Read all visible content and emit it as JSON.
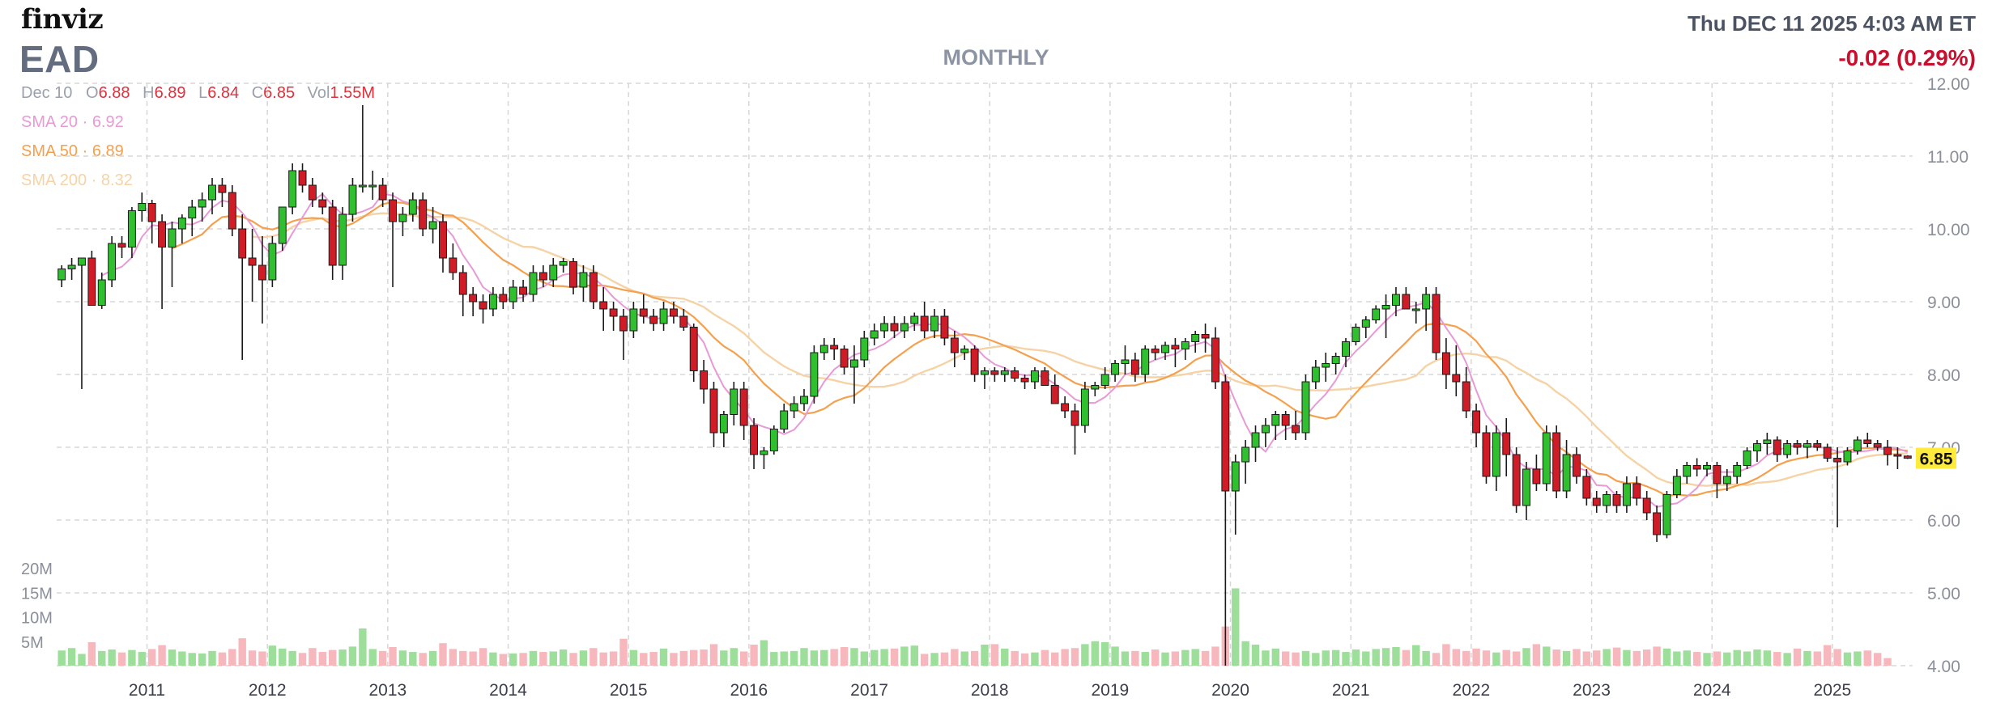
{
  "header": {
    "logo": "finviz",
    "ticker": "EAD",
    "period": "MONTHLY",
    "datetime": "Thu DEC 11 2025 4:03 AM ET",
    "change": "-0.02 (0.29%)"
  },
  "ohlc": {
    "date": "Dec 10",
    "o_label": "O",
    "o": "6.88",
    "h_label": "H",
    "h": "6.89",
    "l_label": "L",
    "l": "6.84",
    "c_label": "C",
    "c": "6.85",
    "vol_label": "Vol",
    "vol": "1.55M"
  },
  "indicators": {
    "sma20": "SMA 20 · 6.92",
    "sma50": "SMA 50 · 6.89",
    "sma200": "SMA 200 · 8.32"
  },
  "colors": {
    "up": "#2fbf2f",
    "down": "#d01c26",
    "vol_up": "#9ddf9a",
    "vol_down": "#f7b8bd",
    "sma20": "#e79ad5",
    "sma50": "#f4a04e",
    "sma200": "#f5d3a6",
    "grid": "#d7d7d7",
    "last_price_bg": "#ffeb3b"
  },
  "chart_data": {
    "type": "candlestick",
    "interval": "monthly",
    "x_tick_labels": [
      "2011",
      "2012",
      "2013",
      "2014",
      "2015",
      "2016",
      "2017",
      "2018",
      "2019",
      "2020",
      "2021",
      "2022",
      "2023",
      "2024",
      "2025"
    ],
    "y_tick_labels": [
      "12.00",
      "11.00",
      "10.00",
      "9.00",
      "8.00",
      "7.00",
      "6.00",
      "5.00",
      "4.00"
    ],
    "ylim": [
      4.0,
      12.0
    ],
    "volume_tick_labels": [
      "20M",
      "15M",
      "10M",
      "5M"
    ],
    "volume_max_m": 20,
    "last_price": "6.85",
    "start": "2010-04",
    "candles": [
      [
        9.3,
        9.5,
        9.2,
        9.45
      ],
      [
        9.45,
        9.6,
        9.3,
        9.5
      ],
      [
        9.5,
        9.6,
        7.8,
        9.6
      ],
      [
        9.6,
        9.7,
        9.0,
        8.95
      ],
      [
        8.95,
        9.4,
        8.9,
        9.3
      ],
      [
        9.3,
        9.9,
        9.2,
        9.8
      ],
      [
        9.8,
        9.9,
        9.6,
        9.75
      ],
      [
        9.75,
        10.3,
        9.6,
        10.25
      ],
      [
        10.25,
        10.5,
        10.1,
        10.35
      ],
      [
        10.35,
        10.4,
        9.8,
        10.1
      ],
      [
        10.1,
        10.2,
        8.9,
        9.75
      ],
      [
        9.75,
        10.1,
        9.2,
        10.0
      ],
      [
        10.0,
        10.2,
        9.8,
        10.15
      ],
      [
        10.15,
        10.4,
        9.9,
        10.3
      ],
      [
        10.3,
        10.5,
        10.1,
        10.4
      ],
      [
        10.4,
        10.7,
        10.2,
        10.6
      ],
      [
        10.6,
        10.7,
        10.3,
        10.5
      ],
      [
        10.5,
        10.6,
        9.9,
        10.0
      ],
      [
        10.0,
        10.2,
        8.2,
        9.6
      ],
      [
        9.6,
        10.0,
        9.0,
        9.5
      ],
      [
        9.5,
        9.9,
        8.7,
        9.3
      ],
      [
        9.3,
        9.9,
        9.2,
        9.8
      ],
      [
        9.8,
        10.3,
        9.7,
        10.3
      ],
      [
        10.3,
        10.9,
        10.2,
        10.8
      ],
      [
        10.8,
        10.9,
        10.5,
        10.6
      ],
      [
        10.6,
        10.7,
        10.3,
        10.4
      ],
      [
        10.4,
        10.5,
        10.2,
        10.3
      ],
      [
        10.3,
        10.4,
        9.3,
        9.5
      ],
      [
        9.5,
        10.3,
        9.3,
        10.2
      ],
      [
        10.2,
        10.7,
        10.1,
        10.6
      ],
      [
        10.6,
        11.7,
        10.5,
        10.6
      ],
      [
        10.6,
        10.8,
        10.4,
        10.6
      ],
      [
        10.6,
        10.7,
        10.3,
        10.4
      ],
      [
        10.4,
        10.5,
        9.2,
        10.1
      ],
      [
        10.1,
        10.3,
        9.9,
        10.2
      ],
      [
        10.2,
        10.5,
        10.1,
        10.4
      ],
      [
        10.4,
        10.5,
        9.9,
        10.0
      ],
      [
        10.0,
        10.3,
        9.8,
        10.1
      ],
      [
        10.1,
        10.2,
        9.4,
        9.6
      ],
      [
        9.6,
        9.8,
        9.3,
        9.4
      ],
      [
        9.4,
        9.5,
        8.8,
        9.1
      ],
      [
        9.1,
        9.2,
        8.8,
        9.0
      ],
      [
        9.0,
        9.1,
        8.7,
        8.9
      ],
      [
        8.9,
        9.2,
        8.8,
        9.1
      ],
      [
        9.1,
        9.2,
        8.9,
        9.0
      ],
      [
        9.0,
        9.3,
        8.9,
        9.2
      ],
      [
        9.2,
        9.3,
        9.0,
        9.1
      ],
      [
        9.1,
        9.5,
        9.0,
        9.4
      ],
      [
        9.4,
        9.5,
        9.2,
        9.3
      ],
      [
        9.3,
        9.6,
        9.2,
        9.5
      ],
      [
        9.5,
        9.6,
        9.4,
        9.55
      ],
      [
        9.55,
        9.6,
        9.1,
        9.2
      ],
      [
        9.2,
        9.5,
        9.0,
        9.4
      ],
      [
        9.4,
        9.5,
        8.9,
        9.0
      ],
      [
        9.0,
        9.2,
        8.6,
        8.9
      ],
      [
        8.9,
        9.0,
        8.6,
        8.8
      ],
      [
        8.8,
        8.9,
        8.2,
        8.6
      ],
      [
        8.6,
        9.0,
        8.5,
        8.9
      ],
      [
        8.9,
        9.1,
        8.7,
        8.8
      ],
      [
        8.8,
        8.9,
        8.6,
        8.7
      ],
      [
        8.7,
        9.0,
        8.6,
        8.9
      ],
      [
        8.9,
        9.0,
        8.7,
        8.8
      ],
      [
        8.8,
        8.9,
        8.6,
        8.65
      ],
      [
        8.65,
        8.7,
        7.9,
        8.05
      ],
      [
        8.05,
        8.2,
        7.6,
        7.8
      ],
      [
        7.8,
        7.9,
        7.0,
        7.2
      ],
      [
        7.2,
        7.5,
        7.0,
        7.45
      ],
      [
        7.45,
        7.9,
        7.3,
        7.8
      ],
      [
        7.8,
        7.9,
        7.1,
        7.3
      ],
      [
        7.3,
        7.4,
        6.7,
        6.9
      ],
      [
        6.9,
        7.0,
        6.7,
        6.95
      ],
      [
        6.95,
        7.3,
        6.9,
        7.25
      ],
      [
        7.25,
        7.6,
        7.2,
        7.5
      ],
      [
        7.5,
        7.7,
        7.4,
        7.6
      ],
      [
        7.6,
        7.8,
        7.5,
        7.7
      ],
      [
        7.7,
        8.4,
        7.6,
        8.3
      ],
      [
        8.3,
        8.5,
        8.2,
        8.4
      ],
      [
        8.4,
        8.5,
        8.2,
        8.35
      ],
      [
        8.35,
        8.4,
        8.0,
        8.1
      ],
      [
        8.1,
        8.4,
        7.6,
        8.2
      ],
      [
        8.2,
        8.6,
        8.1,
        8.5
      ],
      [
        8.5,
        8.7,
        8.4,
        8.6
      ],
      [
        8.6,
        8.8,
        8.5,
        8.7
      ],
      [
        8.7,
        8.8,
        8.5,
        8.6
      ],
      [
        8.6,
        8.8,
        8.5,
        8.7
      ],
      [
        8.7,
        8.85,
        8.6,
        8.8
      ],
      [
        8.8,
        9.0,
        8.5,
        8.6
      ],
      [
        8.6,
        8.9,
        8.5,
        8.8
      ],
      [
        8.8,
        8.9,
        8.4,
        8.5
      ],
      [
        8.5,
        8.6,
        8.1,
        8.3
      ],
      [
        8.3,
        8.4,
        8.2,
        8.35
      ],
      [
        8.35,
        8.4,
        7.9,
        8.0
      ],
      [
        8.0,
        8.1,
        7.8,
        8.05
      ],
      [
        8.05,
        8.1,
        7.9,
        8.0
      ],
      [
        8.0,
        8.1,
        7.9,
        8.05
      ],
      [
        8.05,
        8.1,
        7.9,
        7.95
      ],
      [
        7.95,
        8.0,
        7.8,
        7.9
      ],
      [
        7.9,
        8.1,
        7.8,
        8.05
      ],
      [
        8.05,
        8.1,
        7.9,
        7.85
      ],
      [
        7.85,
        8.0,
        7.6,
        7.6
      ],
      [
        7.6,
        7.7,
        7.4,
        7.5
      ],
      [
        7.5,
        7.6,
        6.9,
        7.3
      ],
      [
        7.3,
        7.9,
        7.2,
        7.8
      ],
      [
        7.8,
        7.9,
        7.7,
        7.85
      ],
      [
        7.85,
        8.1,
        7.8,
        8.0
      ],
      [
        8.0,
        8.2,
        7.9,
        8.15
      ],
      [
        8.15,
        8.4,
        8.0,
        8.2
      ],
      [
        8.2,
        8.3,
        7.9,
        8.0
      ],
      [
        8.0,
        8.4,
        7.9,
        8.35
      ],
      [
        8.35,
        8.4,
        8.2,
        8.3
      ],
      [
        8.3,
        8.45,
        8.2,
        8.4
      ],
      [
        8.4,
        8.5,
        8.1,
        8.35
      ],
      [
        8.35,
        8.5,
        8.2,
        8.45
      ],
      [
        8.45,
        8.6,
        8.3,
        8.55
      ],
      [
        8.55,
        8.7,
        8.3,
        8.5
      ],
      [
        8.5,
        8.65,
        7.8,
        7.9
      ],
      [
        7.9,
        8.0,
        4.0,
        6.4
      ],
      [
        6.4,
        6.9,
        5.8,
        6.8
      ],
      [
        6.8,
        7.1,
        6.5,
        7.0
      ],
      [
        7.0,
        7.3,
        6.8,
        7.2
      ],
      [
        7.2,
        7.4,
        7.0,
        7.3
      ],
      [
        7.3,
        7.5,
        7.1,
        7.45
      ],
      [
        7.45,
        7.5,
        7.1,
        7.3
      ],
      [
        7.3,
        7.5,
        7.1,
        7.2
      ],
      [
        7.2,
        8.0,
        7.1,
        7.9
      ],
      [
        7.9,
        8.2,
        7.8,
        8.1
      ],
      [
        8.1,
        8.3,
        7.9,
        8.15
      ],
      [
        8.15,
        8.3,
        8.0,
        8.25
      ],
      [
        8.25,
        8.5,
        8.1,
        8.45
      ],
      [
        8.45,
        8.7,
        8.4,
        8.65
      ],
      [
        8.65,
        8.8,
        8.5,
        8.75
      ],
      [
        8.75,
        8.95,
        8.7,
        8.9
      ],
      [
        8.9,
        9.1,
        8.5,
        8.95
      ],
      [
        8.95,
        9.2,
        8.8,
        9.1
      ],
      [
        9.1,
        9.2,
        8.9,
        8.9
      ],
      [
        8.9,
        9.0,
        8.7,
        8.9
      ],
      [
        8.9,
        9.2,
        8.6,
        9.1
      ],
      [
        9.1,
        9.2,
        8.2,
        8.3
      ],
      [
        8.3,
        8.5,
        7.8,
        8.0
      ],
      [
        8.0,
        8.4,
        7.7,
        7.9
      ],
      [
        7.9,
        8.1,
        7.4,
        7.5
      ],
      [
        7.5,
        7.6,
        7.0,
        7.2
      ],
      [
        7.2,
        7.3,
        6.5,
        6.6
      ],
      [
        6.6,
        7.3,
        6.4,
        7.2
      ],
      [
        7.2,
        7.4,
        6.6,
        6.9
      ],
      [
        6.9,
        7.0,
        6.1,
        6.2
      ],
      [
        6.2,
        6.8,
        6.0,
        6.7
      ],
      [
        6.7,
        6.9,
        6.4,
        6.5
      ],
      [
        6.5,
        7.3,
        6.4,
        7.2
      ],
      [
        7.2,
        7.3,
        6.3,
        6.4
      ],
      [
        6.4,
        7.1,
        6.3,
        6.9
      ],
      [
        6.9,
        7.0,
        6.5,
        6.6
      ],
      [
        6.6,
        6.7,
        6.2,
        6.3
      ],
      [
        6.3,
        6.4,
        6.1,
        6.2
      ],
      [
        6.2,
        6.4,
        6.1,
        6.35
      ],
      [
        6.35,
        6.4,
        6.1,
        6.2
      ],
      [
        6.2,
        6.6,
        6.1,
        6.5
      ],
      [
        6.5,
        6.6,
        6.2,
        6.3
      ],
      [
        6.3,
        6.4,
        6.0,
        6.1
      ],
      [
        6.1,
        6.2,
        5.7,
        5.8
      ],
      [
        5.8,
        6.4,
        5.75,
        6.35
      ],
      [
        6.35,
        6.7,
        6.3,
        6.6
      ],
      [
        6.6,
        6.8,
        6.5,
        6.75
      ],
      [
        6.75,
        6.85,
        6.6,
        6.7
      ],
      [
        6.7,
        6.8,
        6.6,
        6.75
      ],
      [
        6.75,
        6.8,
        6.3,
        6.5
      ],
      [
        6.5,
        6.7,
        6.4,
        6.6
      ],
      [
        6.6,
        6.8,
        6.5,
        6.75
      ],
      [
        6.75,
        7.0,
        6.7,
        6.95
      ],
      [
        6.95,
        7.1,
        6.8,
        7.05
      ],
      [
        7.05,
        7.2,
        6.9,
        7.1
      ],
      [
        7.1,
        7.15,
        6.8,
        6.9
      ],
      [
        6.9,
        7.1,
        6.85,
        7.05
      ],
      [
        7.05,
        7.1,
        6.9,
        7.0
      ],
      [
        7.0,
        7.1,
        6.85,
        7.05
      ],
      [
        7.05,
        7.1,
        6.95,
        7.0
      ],
      [
        7.0,
        7.05,
        6.8,
        6.85
      ],
      [
        6.85,
        7.0,
        5.9,
        6.8
      ],
      [
        6.8,
        7.0,
        6.75,
        6.95
      ],
      [
        6.95,
        7.15,
        6.9,
        7.1
      ],
      [
        7.1,
        7.2,
        7.0,
        7.05
      ],
      [
        7.05,
        7.1,
        6.95,
        7.0
      ],
      [
        7.0,
        7.1,
        6.75,
        6.9
      ],
      [
        6.9,
        7.0,
        6.7,
        6.88
      ],
      [
        6.88,
        6.89,
        6.84,
        6.85
      ]
    ],
    "volumes_m": [
      3.1,
      3.6,
      2.4,
      4.8,
      3.0,
      3.3,
      2.7,
      3.2,
      2.8,
      3.4,
      4.2,
      3.3,
      2.9,
      2.6,
      2.5,
      3.0,
      2.7,
      3.4,
      5.6,
      3.1,
      2.9,
      4.1,
      3.5,
      3.0,
      2.6,
      3.6,
      2.8,
      3.2,
      3.3,
      3.9,
      7.6,
      3.4,
      3.0,
      3.8,
      3.1,
      2.8,
      2.6,
      3.0,
      4.6,
      3.4,
      3.0,
      2.9,
      3.6,
      2.7,
      2.4,
      2.5,
      2.6,
      3.0,
      2.8,
      2.9,
      3.3,
      2.6,
      3.1,
      3.6,
      2.7,
      2.9,
      5.5,
      3.2,
      2.6,
      2.8,
      3.5,
      2.6,
      3.0,
      3.2,
      3.3,
      4.4,
      3.1,
      3.6,
      2.9,
      4.3,
      5.2,
      2.8,
      2.9,
      3.0,
      3.6,
      3.1,
      3.2,
      3.4,
      3.8,
      3.6,
      2.9,
      3.2,
      3.4,
      3.5,
      3.9,
      4.1,
      2.4,
      2.6,
      2.7,
      3.4,
      2.9,
      3.0,
      4.3,
      4.4,
      3.5,
      3.0,
      2.5,
      2.7,
      3.2,
      2.7,
      3.4,
      3.6,
      4.4,
      5.0,
      4.8,
      3.9,
      2.9,
      3.0,
      2.8,
      3.3,
      2.7,
      2.9,
      3.2,
      3.4,
      3.0,
      3.9,
      8.0,
      15.8,
      5.0,
      4.3,
      3.1,
      3.5,
      2.9,
      2.7,
      3.0,
      2.6,
      3.1,
      3.2,
      2.8,
      3.3,
      2.9,
      3.4,
      3.6,
      3.8,
      3.2,
      4.2,
      3.0,
      2.6,
      4.4,
      3.4,
      3.0,
      3.5,
      3.1,
      2.7,
      3.2,
      2.9,
      3.6,
      4.4,
      3.9,
      3.3,
      3.0,
      3.4,
      2.9,
      3.1,
      3.4,
      3.7,
      3.2,
      3.0,
      3.3,
      3.9,
      3.5,
      2.9,
      3.1,
      2.8,
      2.6,
      2.9,
      2.7,
      3.2,
      2.9,
      3.3,
      3.1,
      2.8,
      2.6,
      3.5,
      3.0,
      2.9,
      4.2,
      3.4,
      2.7,
      2.9,
      3.1,
      2.6,
      1.55
    ]
  }
}
